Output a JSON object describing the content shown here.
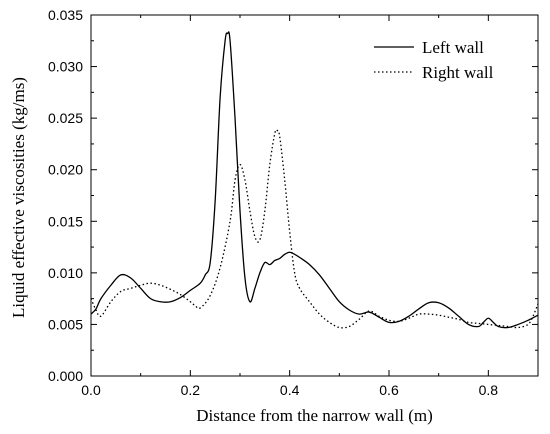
{
  "chart_data": {
    "type": "line",
    "title": "",
    "xlabel": "Distance from the narrow wall (m)",
    "ylabel": "Liquid effective viscosities (kg/ms)",
    "xlim": [
      0.0,
      0.9
    ],
    "ylim": [
      0.0,
      0.035
    ],
    "xticks": [
      "0.0",
      "0.2",
      "0.4",
      "0.6",
      "0.8"
    ],
    "xtick_values": [
      0.0,
      0.2,
      0.4,
      0.6,
      0.8
    ],
    "yticks": [
      "0.000",
      "0.005",
      "0.010",
      "0.015",
      "0.020",
      "0.025",
      "0.030",
      "0.035"
    ],
    "ytick_values": [
      0.0,
      0.005,
      0.01,
      0.015,
      0.02,
      0.025,
      0.03,
      0.035
    ],
    "grid": false,
    "legend_position": "top-right",
    "series": [
      {
        "name": "Left wall",
        "style": "solid",
        "color": "#000000",
        "x": [
          0.0,
          0.01,
          0.02,
          0.04,
          0.06,
          0.08,
          0.1,
          0.12,
          0.14,
          0.16,
          0.18,
          0.2,
          0.22,
          0.23,
          0.24,
          0.25,
          0.26,
          0.27,
          0.275,
          0.28,
          0.29,
          0.3,
          0.31,
          0.32,
          0.33,
          0.34,
          0.35,
          0.36,
          0.37,
          0.38,
          0.39,
          0.4,
          0.41,
          0.42,
          0.44,
          0.46,
          0.48,
          0.5,
          0.52,
          0.54,
          0.56,
          0.58,
          0.6,
          0.62,
          0.64,
          0.66,
          0.68,
          0.7,
          0.72,
          0.74,
          0.76,
          0.78,
          0.79,
          0.8,
          0.81,
          0.82,
          0.84,
          0.86,
          0.88,
          0.9
        ],
        "y": [
          0.006,
          0.0065,
          0.0075,
          0.0088,
          0.0098,
          0.0095,
          0.0085,
          0.0075,
          0.0072,
          0.0072,
          0.0076,
          0.0083,
          0.009,
          0.0098,
          0.011,
          0.017,
          0.027,
          0.0325,
          0.0332,
          0.0325,
          0.025,
          0.016,
          0.0095,
          0.0072,
          0.0085,
          0.01,
          0.011,
          0.0108,
          0.0112,
          0.0114,
          0.0118,
          0.012,
          0.0118,
          0.0115,
          0.0108,
          0.0098,
          0.0085,
          0.0072,
          0.0064,
          0.006,
          0.0062,
          0.0057,
          0.0052,
          0.0053,
          0.0058,
          0.0065,
          0.0071,
          0.0071,
          0.0066,
          0.0058,
          0.005,
          0.0048,
          0.0052,
          0.0056,
          0.0052,
          0.0048,
          0.0047,
          0.005,
          0.0054,
          0.0059
        ]
      },
      {
        "name": "Right wall",
        "style": "dotted",
        "color": "#000000",
        "x": [
          0.0,
          0.01,
          0.02,
          0.04,
          0.06,
          0.08,
          0.1,
          0.12,
          0.14,
          0.16,
          0.18,
          0.2,
          0.21,
          0.22,
          0.24,
          0.26,
          0.28,
          0.29,
          0.3,
          0.31,
          0.32,
          0.33,
          0.34,
          0.35,
          0.36,
          0.37,
          0.375,
          0.38,
          0.39,
          0.4,
          0.41,
          0.42,
          0.44,
          0.46,
          0.48,
          0.5,
          0.52,
          0.54,
          0.56,
          0.58,
          0.6,
          0.62,
          0.64,
          0.66,
          0.68,
          0.7,
          0.72,
          0.74,
          0.76,
          0.78,
          0.8,
          0.82,
          0.84,
          0.86,
          0.88,
          0.89,
          0.9
        ],
        "y": [
          0.0075,
          0.0064,
          0.0058,
          0.0072,
          0.0082,
          0.0085,
          0.0088,
          0.009,
          0.0088,
          0.0084,
          0.0079,
          0.0072,
          0.0068,
          0.0066,
          0.0078,
          0.0105,
          0.015,
          0.019,
          0.0205,
          0.019,
          0.016,
          0.0135,
          0.0132,
          0.016,
          0.0205,
          0.0235,
          0.0238,
          0.0232,
          0.019,
          0.014,
          0.01,
          0.0085,
          0.0072,
          0.006,
          0.0052,
          0.0047,
          0.0048,
          0.0055,
          0.0063,
          0.0058,
          0.0054,
          0.0053,
          0.0056,
          0.006,
          0.006,
          0.0059,
          0.0057,
          0.0055,
          0.0052,
          0.0051,
          0.005,
          0.0049,
          0.0048,
          0.0047,
          0.005,
          0.0058,
          0.007
        ]
      }
    ]
  }
}
